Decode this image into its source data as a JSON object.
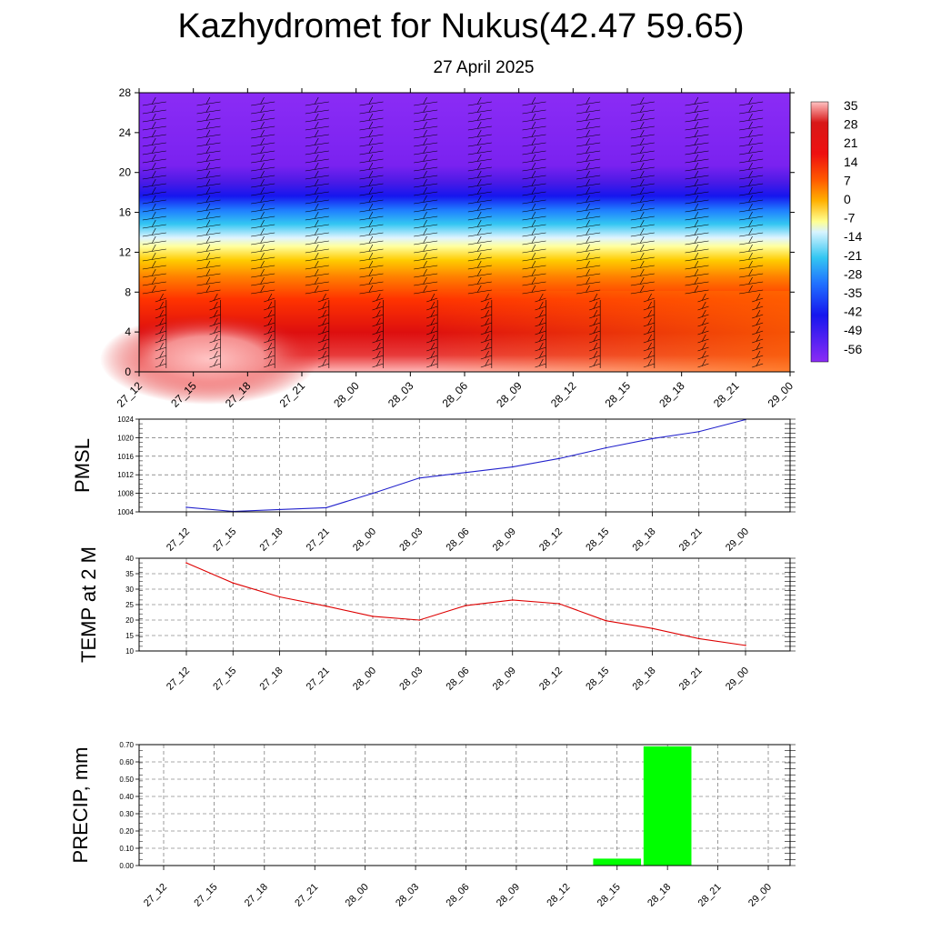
{
  "title": "Kazhydromet for Nukus(42.47 59.65)",
  "subtitle": "27 April 2025",
  "colors": {
    "pmsl_line": "#2222cc",
    "temp_line": "#dd0000",
    "precip_bar": "#00ff00"
  },
  "chart_data": [
    {
      "type": "heatmap",
      "title": "",
      "x_categories": [
        "27_12",
        "27_15",
        "27_18",
        "27_21",
        "28_00",
        "28_03",
        "28_06",
        "28_09",
        "28_12",
        "28_15",
        "28_18",
        "28_21",
        "29_00"
      ],
      "y_ticks": [
        0,
        4,
        8,
        12,
        16,
        20,
        24,
        28
      ],
      "ylim": [
        0,
        28
      ],
      "colorbar_labels": [
        "35",
        "28",
        "21",
        "14",
        "7",
        "0",
        "-7",
        "-14",
        "-21",
        "-28",
        "-35",
        "-42",
        "-49",
        "-56"
      ],
      "overlay": "wind barbs"
    },
    {
      "type": "line",
      "ylabel": "PMSL",
      "categories": [
        "27_12",
        "27_15",
        "27_18",
        "27_21",
        "28_00",
        "28_03",
        "28_06",
        "28_09",
        "28_12",
        "28_15",
        "28_18",
        "28_21",
        "29_00"
      ],
      "values": [
        1005.0,
        1004.1,
        1004.5,
        1004.9,
        1008.0,
        1011.3,
        1012.5,
        1013.7,
        1015.5,
        1017.8,
        1019.8,
        1021.3,
        1023.9
      ],
      "ylim": [
        1004,
        1024
      ],
      "y_ticks": [
        "1004",
        "1008",
        "1012",
        "1016",
        "1020",
        "1024"
      ],
      "grid": true
    },
    {
      "type": "line",
      "ylabel": "TEMP at 2 M",
      "categories": [
        "27_12",
        "27_15",
        "27_18",
        "27_21",
        "28_00",
        "28_03",
        "28_06",
        "28_09",
        "28_12",
        "28_15",
        "28_18",
        "28_21",
        "29_00"
      ],
      "values": [
        38.5,
        32.0,
        27.5,
        24.5,
        21.2,
        20.0,
        24.7,
        26.5,
        25.3,
        19.8,
        17.3,
        14.0,
        11.8
      ],
      "ylim": [
        10,
        40
      ],
      "y_ticks": [
        "10",
        "15",
        "20",
        "25",
        "30",
        "35",
        "40"
      ],
      "grid": true
    },
    {
      "type": "bar",
      "ylabel": "PRECIP, mm",
      "categories": [
        "27_12",
        "27_15",
        "27_18",
        "27_21",
        "28_00",
        "28_03",
        "28_06",
        "28_09",
        "28_12",
        "28_15",
        "28_18",
        "28_21",
        "29_00"
      ],
      "values": [
        0,
        0,
        0,
        0,
        0,
        0,
        0,
        0,
        0,
        0.04,
        0.69,
        0,
        0
      ],
      "ylim": [
        0,
        0.7
      ],
      "y_ticks": [
        "0.00",
        "0.10",
        "0.20",
        "0.30",
        "0.40",
        "0.50",
        "0.60",
        "0.70"
      ],
      "grid": true
    }
  ]
}
